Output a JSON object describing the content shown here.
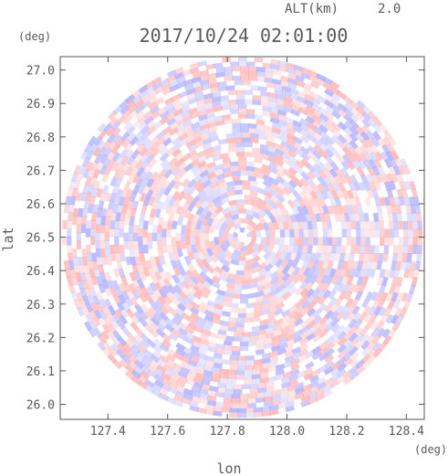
{
  "chart_data": {
    "type": "heatmap",
    "title": "2017/10/24 02:01:00",
    "altitude_label": "ALT(km)",
    "altitude_value": "2.0",
    "xlabel": "lon",
    "ylabel": "lat",
    "x_unit": "(deg)",
    "y_unit": "(deg)",
    "xlim": [
      127.24,
      128.46
    ],
    "ylim": [
      25.955,
      27.04
    ],
    "x_ticks": [
      "127.4",
      "127.6",
      "127.8",
      "128.0",
      "128.2",
      "128.4"
    ],
    "y_ticks": [
      "26.0",
      "26.1",
      "26.2",
      "26.3",
      "26.4",
      "26.5",
      "26.6",
      "26.7",
      "26.8",
      "26.9",
      "27.0"
    ],
    "radar_center": {
      "lon": 127.85,
      "lat": 26.5
    },
    "radar_range_lat_deg": 0.54,
    "colors": {
      "positive": "#ff9090",
      "negative": "#8c8cff",
      "axis": "#555555",
      "text": "#5a5a5a"
    }
  }
}
